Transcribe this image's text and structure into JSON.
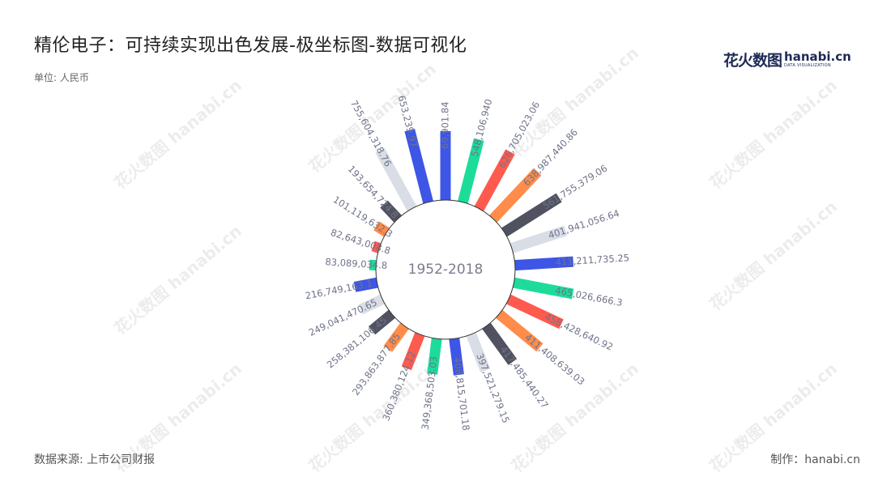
{
  "header": {
    "title": "精伦电子：可持续实现出色发展-极坐标图-数据可视化",
    "unit": "单位: 人民币"
  },
  "footer": {
    "source": "数据来源: 上市公司财报",
    "maker": "制作：hanabi.cn"
  },
  "brand": {
    "cn": "花火数图",
    "en": "hanabi.cn",
    "sub": "DATA VISUALIZATION",
    "logo_color": "#1e2a55"
  },
  "watermark": {
    "text": "花火数图 hanabi.cn"
  },
  "chart_data": {
    "type": "bar",
    "coordinate": "polar",
    "center_label": "1952-2018",
    "start_angle_deg": 0,
    "direction": "clockwise",
    "colors": [
      "#3d56e6",
      "#1ddc9a",
      "#ff5a4e",
      "#ff8c4a",
      "#50535f",
      "#d9dde6"
    ],
    "labels": [
      "69,901.84",
      "548,106,940",
      "626,705,023.06",
      "638,987,440.86",
      "561,755,379.06",
      "401,941,056.64",
      "411,211,735.25",
      "465,026,666.3",
      "458,428,640.92",
      "411,408,639.03",
      "417,485,440.27",
      "397,521,279.15",
      "408,815,701.18",
      "349,368,503.03",
      "360,380,124.12",
      "293,863,877.85",
      "258,381,106.45",
      "249,041,470.65",
      "216,749,163.1",
      "83,089,034.8",
      "82,643,008.8",
      "101,119,632.3",
      "193,654,724.8",
      "755,604,318.76",
      "653,239.97"
    ],
    "values": [
      85,
      80,
      80,
      80,
      80,
      70,
      72,
      74,
      72,
      65,
      55,
      48,
      45,
      44,
      45,
      35,
      32,
      30,
      28,
      8,
      8,
      15,
      25,
      82,
      92
    ]
  }
}
